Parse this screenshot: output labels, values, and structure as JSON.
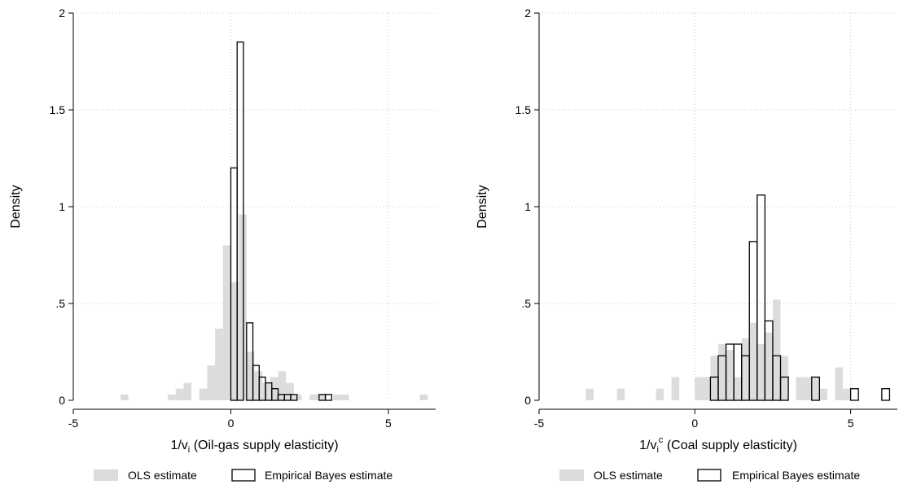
{
  "chart_data": [
    {
      "type": "bar",
      "subtype": "overlaid-histogram",
      "title": "",
      "xlabel": {
        "prefix": "1/v",
        "subscript": "i",
        "superscript": "",
        "suffix": " (Oil-gas supply elasticity)"
      },
      "ylabel": "Density",
      "xlim": [
        -5,
        6.5
      ],
      "ylim": [
        0,
        2
      ],
      "x_ticks": [
        {
          "value": -5,
          "label": "-5"
        },
        {
          "value": 0,
          "label": "0"
        },
        {
          "value": 5,
          "label": "5"
        }
      ],
      "y_ticks": [
        {
          "value": 0,
          "label": "0"
        },
        {
          "value": 0.5,
          "label": ".5"
        },
        {
          "value": 1,
          "label": "1"
        },
        {
          "value": 1.5,
          "label": "1.5"
        },
        {
          "value": 2,
          "label": "2"
        }
      ],
      "grid": true,
      "legend_position": "bottom",
      "series": [
        {
          "name": "OLS estimate",
          "style": "filled",
          "color": "#dcdcdc",
          "bin_width": 0.25,
          "bins": [
            {
              "x0": -3.5,
              "y": 0.03
            },
            {
              "x0": -2.0,
              "y": 0.03
            },
            {
              "x0": -1.75,
              "y": 0.06
            },
            {
              "x0": -1.5,
              "y": 0.09
            },
            {
              "x0": -1.0,
              "y": 0.06
            },
            {
              "x0": -0.75,
              "y": 0.18
            },
            {
              "x0": -0.5,
              "y": 0.37
            },
            {
              "x0": -0.25,
              "y": 0.8
            },
            {
              "x0": 0.0,
              "y": 0.61
            },
            {
              "x0": 0.25,
              "y": 0.96
            },
            {
              "x0": 0.5,
              "y": 0.25
            },
            {
              "x0": 0.75,
              "y": 0.15
            },
            {
              "x0": 1.0,
              "y": 0.09
            },
            {
              "x0": 1.25,
              "y": 0.12
            },
            {
              "x0": 1.5,
              "y": 0.15
            },
            {
              "x0": 1.75,
              "y": 0.09
            },
            {
              "x0": 2.0,
              "y": 0.03
            },
            {
              "x0": 2.5,
              "y": 0.03
            },
            {
              "x0": 2.75,
              "y": 0.03
            },
            {
              "x0": 3.25,
              "y": 0.03
            },
            {
              "x0": 3.5,
              "y": 0.03
            },
            {
              "x0": 6.0,
              "y": 0.03
            }
          ]
        },
        {
          "name": "Empirical Bayes estimate",
          "style": "outline",
          "color": "#000000",
          "bin_width": 0.2,
          "bins": [
            {
              "x0": 0.0,
              "y": 1.2
            },
            {
              "x0": 0.2,
              "y": 1.85
            },
            {
              "x0": 0.4,
              "y": 0.0
            },
            {
              "x0": 0.5,
              "y": 0.4
            },
            {
              "x0": 0.7,
              "y": 0.18
            },
            {
              "x0": 0.9,
              "y": 0.12
            },
            {
              "x0": 1.1,
              "y": 0.09
            },
            {
              "x0": 1.3,
              "y": 0.06
            },
            {
              "x0": 1.5,
              "y": 0.03
            },
            {
              "x0": 1.7,
              "y": 0.03
            },
            {
              "x0": 1.9,
              "y": 0.03
            },
            {
              "x0": 2.8,
              "y": 0.03
            },
            {
              "x0": 3.0,
              "y": 0.03
            }
          ]
        }
      ]
    },
    {
      "type": "bar",
      "subtype": "overlaid-histogram",
      "title": "",
      "xlabel": {
        "prefix": "1/v",
        "subscript": "i",
        "superscript": "c",
        "suffix": " (Coal supply elasticity)"
      },
      "ylabel": "Density",
      "xlim": [
        -5,
        6.5
      ],
      "ylim": [
        0,
        2
      ],
      "x_ticks": [
        {
          "value": -5,
          "label": "-5"
        },
        {
          "value": 0,
          "label": "0"
        },
        {
          "value": 5,
          "label": "5"
        }
      ],
      "y_ticks": [
        {
          "value": 0,
          "label": "0"
        },
        {
          "value": 0.5,
          "label": ".5"
        },
        {
          "value": 1,
          "label": "1"
        },
        {
          "value": 1.5,
          "label": "1.5"
        },
        {
          "value": 2,
          "label": "2"
        }
      ],
      "grid": true,
      "legend_position": "bottom",
      "series": [
        {
          "name": "OLS estimate",
          "style": "filled",
          "color": "#dcdcdc",
          "bin_width": 0.25,
          "bins": [
            {
              "x0": -3.5,
              "y": 0.06
            },
            {
              "x0": -2.5,
              "y": 0.06
            },
            {
              "x0": -1.25,
              "y": 0.06
            },
            {
              "x0": -0.75,
              "y": 0.12
            },
            {
              "x0": 0.0,
              "y": 0.12
            },
            {
              "x0": 0.25,
              "y": 0.12
            },
            {
              "x0": 0.5,
              "y": 0.23
            },
            {
              "x0": 0.75,
              "y": 0.29
            },
            {
              "x0": 1.0,
              "y": 0.26
            },
            {
              "x0": 1.25,
              "y": 0.12
            },
            {
              "x0": 1.5,
              "y": 0.32
            },
            {
              "x0": 1.75,
              "y": 0.4
            },
            {
              "x0": 2.0,
              "y": 0.29
            },
            {
              "x0": 2.25,
              "y": 0.35
            },
            {
              "x0": 2.5,
              "y": 0.52
            },
            {
              "x0": 2.75,
              "y": 0.23
            },
            {
              "x0": 3.25,
              "y": 0.12
            },
            {
              "x0": 3.5,
              "y": 0.12
            },
            {
              "x0": 3.75,
              "y": 0.12
            },
            {
              "x0": 4.0,
              "y": 0.06
            },
            {
              "x0": 4.5,
              "y": 0.17
            },
            {
              "x0": 4.75,
              "y": 0.06
            }
          ]
        },
        {
          "name": "Empirical Bayes estimate",
          "style": "outline",
          "color": "#000000",
          "bin_width": 0.25,
          "bins": [
            {
              "x0": 0.5,
              "y": 0.12
            },
            {
              "x0": 0.75,
              "y": 0.23
            },
            {
              "x0": 1.0,
              "y": 0.29
            },
            {
              "x0": 1.25,
              "y": 0.29
            },
            {
              "x0": 1.5,
              "y": 0.23
            },
            {
              "x0": 1.75,
              "y": 0.82
            },
            {
              "x0": 2.0,
              "y": 1.06
            },
            {
              "x0": 2.25,
              "y": 0.41
            },
            {
              "x0": 2.5,
              "y": 0.23
            },
            {
              "x0": 2.75,
              "y": 0.12
            },
            {
              "x0": 3.75,
              "y": 0.12
            },
            {
              "x0": 5.0,
              "y": 0.06
            },
            {
              "x0": 6.0,
              "y": 0.06
            }
          ]
        }
      ]
    }
  ]
}
